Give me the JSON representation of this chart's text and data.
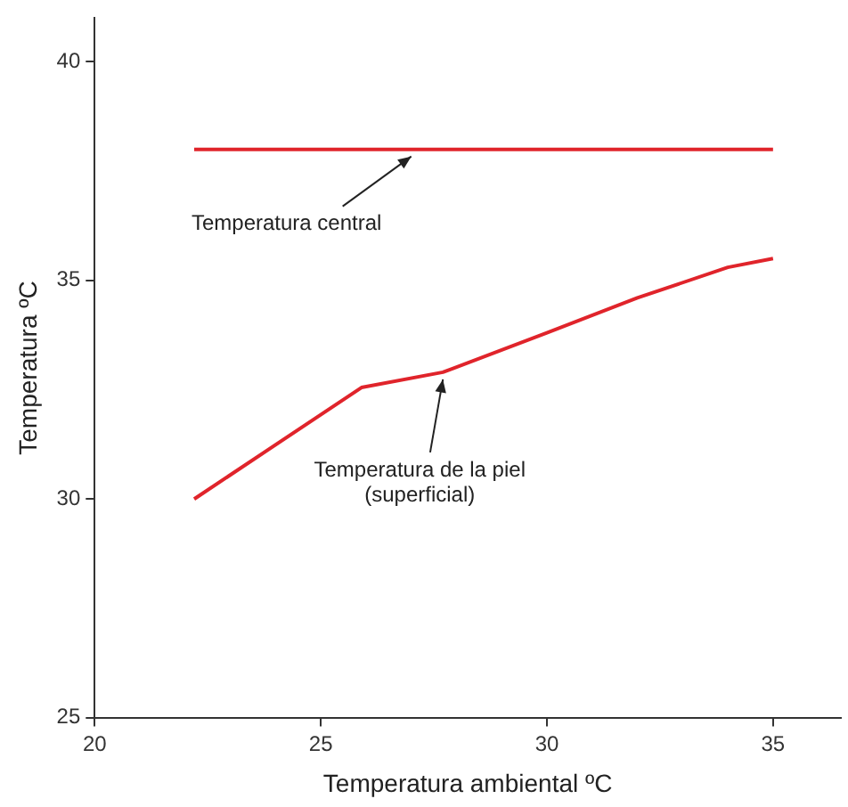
{
  "chart_data": {
    "type": "line",
    "xlabel": "Temperatura ambiental ºC",
    "ylabel": "Temperatura ºC",
    "xlim": [
      20,
      36.5
    ],
    "xticks": [
      20,
      25,
      30,
      35
    ],
    "ylim": [
      25,
      41
    ],
    "yticks": [
      25,
      30,
      35,
      40
    ],
    "grid": false,
    "legend": false,
    "marker": "none",
    "line_style": "solid",
    "series": [
      {
        "color": "#e0242b",
        "x": [
          22.2,
          35
        ],
        "values": [
          38,
          38
        ]
      },
      {
        "color": "#e0242b",
        "x": [
          22.2,
          25.9,
          27.7,
          30,
          32,
          34,
          35
        ],
        "values": [
          30,
          32.55,
          32.9,
          33.8,
          34.6,
          35.3,
          35.5
        ]
      }
    ],
    "annotations": [
      {
        "text": "Temperatura central",
        "x": 27,
        "y": 38
      },
      {
        "text": "Temperatura de la piel\n(superficial)",
        "x": 27.7,
        "y": 32.9
      }
    ]
  }
}
